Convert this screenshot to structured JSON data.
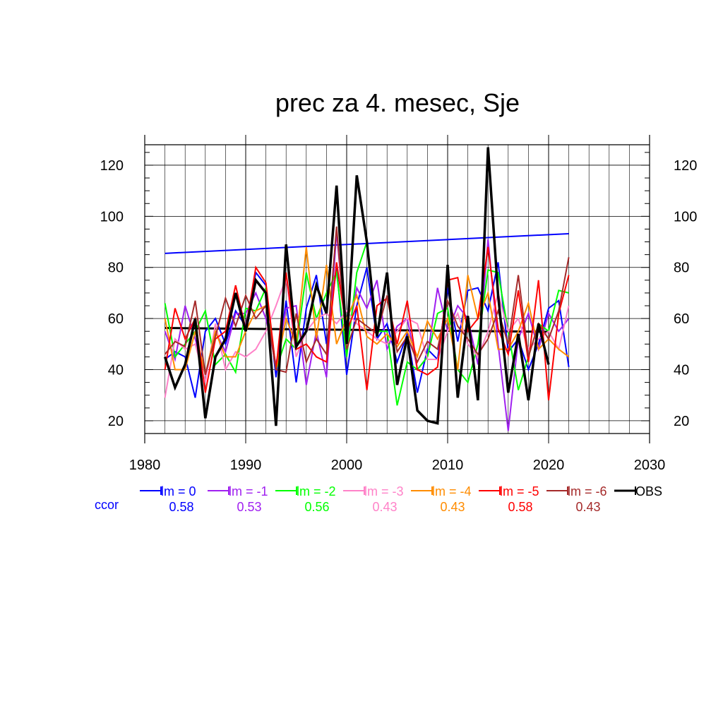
{
  "chart_data": {
    "type": "line",
    "title": "prec za 4. mesec, Sje",
    "xlabel": "",
    "ylabel": "",
    "xlim": [
      1980,
      2030
    ],
    "ylim": [
      15,
      128
    ],
    "x_ticks": [
      "1980",
      "1990",
      "2000",
      "2010",
      "2020",
      "2030"
    ],
    "y_ticks": [
      "20",
      "40",
      "60",
      "80",
      "100",
      "120"
    ],
    "grid": true,
    "legend_position": "bottom",
    "ccor_label": "ccor",
    "series": [
      {
        "name": "lm = 0",
        "color": "#0000ff",
        "ccor": "0.58",
        "x": [
          1982,
          1983,
          1984,
          1985,
          1986,
          1987,
          1988,
          1989,
          1990,
          1991,
          1992,
          1993,
          1994,
          1995,
          1996,
          1997,
          1998,
          1999,
          2000,
          2001,
          2002,
          2003,
          2004,
          2005,
          2006,
          2007,
          2008,
          2009,
          2010,
          2011,
          2012,
          2013,
          2014,
          2015,
          2016,
          2017,
          2018,
          2019,
          2020,
          2021,
          2022
        ],
        "values": [
          44,
          47,
          45,
          29,
          55,
          60,
          50,
          63,
          57,
          78,
          73,
          37,
          67,
          35,
          64,
          77,
          50,
          80,
          38,
          65,
          80,
          52,
          58,
          43,
          54,
          31,
          48,
          44,
          72,
          51,
          71,
          72,
          63,
          82,
          47,
          52,
          40,
          50,
          64,
          67,
          41
        ]
      },
      {
        "name": "lm = -1",
        "color": "#a020f0",
        "ccor": "0.53",
        "x": [
          1982,
          1983,
          1984,
          1985,
          1986,
          1987,
          1988,
          1989,
          1990,
          1991,
          1992,
          1993,
          1994,
          1995,
          1996,
          1997,
          1998,
          1999,
          2000,
          2001,
          2002,
          2003,
          2004,
          2005,
          2006,
          2007,
          2008,
          2009,
          2010,
          2011,
          2012,
          2013,
          2014,
          2015,
          2016,
          2017,
          2018,
          2019,
          2020,
          2021,
          2022
        ],
        "values": [
          55,
          44,
          65,
          52,
          38,
          55,
          47,
          62,
          62,
          70,
          60,
          42,
          64,
          65,
          34,
          55,
          37,
          94,
          50,
          72,
          64,
          75,
          48,
          57,
          60,
          40,
          45,
          72,
          55,
          65,
          60,
          42,
          91,
          50,
          16,
          52,
          62,
          48,
          62,
          55,
          60
        ]
      },
      {
        "name": "lm = -2",
        "color": "#00ff00",
        "ccor": "0.56",
        "x": [
          1982,
          1983,
          1984,
          1985,
          1986,
          1987,
          1988,
          1989,
          1990,
          1991,
          1992,
          1993,
          1994,
          1995,
          1996,
          1997,
          1998,
          1999,
          2000,
          2001,
          2002,
          2003,
          2004,
          2005,
          2006,
          2007,
          2008,
          2009,
          2010,
          2011,
          2012,
          2013,
          2014,
          2015,
          2016,
          2017,
          2018,
          2019,
          2020,
          2021,
          2022
        ],
        "values": [
          66,
          45,
          50,
          55,
          63,
          42,
          46,
          39,
          64,
          63,
          72,
          40,
          52,
          48,
          78,
          60,
          70,
          78,
          45,
          78,
          90,
          55,
          55,
          26,
          43,
          40,
          45,
          62,
          64,
          40,
          35,
          50,
          79,
          78,
          55,
          32,
          45,
          58,
          55,
          71,
          70
        ]
      },
      {
        "name": "lm = -3",
        "color": "#ff82c8",
        "ccor": "0.43",
        "x": [
          1982,
          1983,
          1984,
          1985,
          1986,
          1987,
          1988,
          1989,
          1990,
          1991,
          1992,
          1993,
          1994,
          1995,
          1996,
          1997,
          1998,
          1999,
          2000,
          2001,
          2002,
          2003,
          2004,
          2005,
          2006,
          2007,
          2008,
          2009,
          2010,
          2011,
          2012,
          2013,
          2014,
          2015,
          2016,
          2017,
          2018,
          2019,
          2020,
          2021,
          2022
        ],
        "values": [
          29,
          52,
          48,
          50,
          35,
          58,
          40,
          47,
          45,
          48,
          55,
          65,
          76,
          45,
          55,
          60,
          62,
          58,
          63,
          58,
          55,
          52,
          50,
          55,
          60,
          58,
          44,
          44,
          55,
          62,
          50,
          45,
          55,
          70,
          55,
          60,
          48,
          52,
          55,
          48,
          65
        ]
      },
      {
        "name": "lm = -4",
        "color": "#ff8c00",
        "ccor": "0.43",
        "x": [
          1982,
          1983,
          1984,
          1985,
          1986,
          1987,
          1988,
          1989,
          1990,
          1991,
          1992,
          1993,
          1994,
          1995,
          1996,
          1997,
          1998,
          1999,
          2000,
          2001,
          2002,
          2003,
          2004,
          2005,
          2006,
          2007,
          2008,
          2009,
          2010,
          2011,
          2012,
          2013,
          2014,
          2015,
          2016,
          2017,
          2018,
          2019,
          2020,
          2021,
          2022
        ],
        "values": [
          60,
          40,
          40,
          55,
          38,
          55,
          45,
          45,
          55,
          63,
          65,
          40,
          60,
          50,
          88,
          52,
          81,
          50,
          60,
          69,
          53,
          50,
          54,
          49,
          55,
          45,
          59,
          52,
          60,
          40,
          77,
          60,
          70,
          48,
          48,
          55,
          66,
          48,
          52,
          48,
          45
        ]
      },
      {
        "name": "lm = -5",
        "color": "#ff0000",
        "ccor": "0.58",
        "x": [
          1982,
          1983,
          1984,
          1985,
          1986,
          1987,
          1988,
          1989,
          1990,
          1991,
          1992,
          1993,
          1994,
          1995,
          1996,
          1997,
          1998,
          1999,
          2000,
          2001,
          2002,
          2003,
          2004,
          2005,
          2006,
          2007,
          2008,
          2009,
          2010,
          2011,
          2012,
          2013,
          2014,
          2015,
          2016,
          2017,
          2018,
          2019,
          2020,
          2021,
          2022
        ],
        "values": [
          40,
          64,
          52,
          60,
          31,
          52,
          55,
          73,
          56,
          80,
          74,
          40,
          78,
          48,
          50,
          45,
          43,
          82,
          55,
          65,
          32,
          65,
          68,
          50,
          67,
          40,
          38,
          41,
          75,
          76,
          55,
          60,
          88,
          56,
          46,
          71,
          43,
          75,
          28,
          62,
          77
        ]
      },
      {
        "name": "lm = -6",
        "color": "#a52a2a",
        "ccor": "0.43",
        "x": [
          1982,
          1983,
          1984,
          1985,
          1986,
          1987,
          1988,
          1989,
          1990,
          1991,
          1992,
          1993,
          1994,
          1995,
          1996,
          1997,
          1998,
          1999,
          2000,
          2001,
          2002,
          2003,
          2004,
          2005,
          2006,
          2007,
          2008,
          2009,
          2010,
          2011,
          2012,
          2013,
          2014,
          2015,
          2016,
          2017,
          2018,
          2019,
          2020,
          2021,
          2022
        ],
        "values": [
          46,
          51,
          49,
          67,
          38,
          53,
          68,
          57,
          69,
          60,
          65,
          40,
          39,
          62,
          43,
          52,
          46,
          96,
          48,
          60,
          57,
          54,
          69,
          47,
          53,
          43,
          51,
          48,
          67,
          57,
          52,
          46,
          52,
          63,
          50,
          77,
          45,
          58,
          52,
          63,
          84
        ]
      },
      {
        "name": "OBS",
        "color": "#000000",
        "ccor": "",
        "x": [
          1982,
          1983,
          1984,
          1985,
          1986,
          1987,
          1988,
          1989,
          1990,
          1991,
          1992,
          1993,
          1994,
          1995,
          1996,
          1997,
          1998,
          1999,
          2000,
          2001,
          2002,
          2003,
          2004,
          2005,
          2006,
          2007,
          2008,
          2009,
          2010,
          2011,
          2012,
          2013,
          2014,
          2015,
          2016,
          2017,
          2018,
          2019,
          2020
        ],
        "values": [
          45,
          33,
          42,
          60,
          21,
          45,
          52,
          70,
          55,
          75,
          70,
          18,
          89,
          49,
          55,
          73,
          62,
          112,
          50,
          116,
          90,
          53,
          78,
          34,
          53,
          24,
          20,
          19,
          81,
          29,
          61,
          28,
          127,
          69,
          31,
          54,
          28,
          58,
          42
        ]
      }
    ],
    "trend_lines": [
      {
        "name": "lm = 0 trend",
        "color": "#0000ff",
        "x": [
          1982,
          2022
        ],
        "values": [
          85.5,
          93.2
        ]
      },
      {
        "name": "OBS trend",
        "color": "#000000",
        "x": [
          1982,
          2020
        ],
        "values": [
          56.3,
          54.8
        ]
      }
    ]
  }
}
